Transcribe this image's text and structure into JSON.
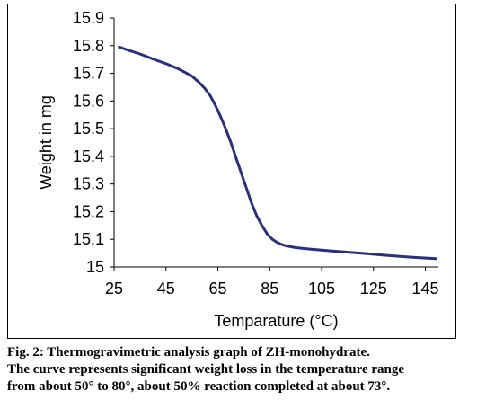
{
  "chart_data": {
    "type": "line",
    "title": "",
    "xlabel": "Temparature (°C)",
    "ylabel": "Weight in mg",
    "xlim": [
      25,
      150
    ],
    "ylim": [
      15,
      15.9
    ],
    "xticks": [
      "25",
      "45",
      "65",
      "85",
      "105",
      "125",
      "145"
    ],
    "yticks": [
      "15",
      "15.1",
      "15.2",
      "15.3",
      "15.4",
      "15.5",
      "15.6",
      "15.7",
      "15.8",
      "15.9"
    ],
    "grid": false,
    "legend": "none",
    "series": [
      {
        "color": "#2b2f7f",
        "x": [
          27,
          30,
          35,
          40,
          45,
          50,
          55,
          58,
          60,
          62,
          64,
          66,
          68,
          70,
          72,
          74,
          76,
          78,
          80,
          82,
          84,
          86,
          88,
          90,
          92,
          95,
          100,
          110,
          120,
          130,
          140,
          149
        ],
        "y": [
          15.795,
          15.785,
          15.77,
          15.752,
          15.735,
          15.715,
          15.69,
          15.665,
          15.645,
          15.62,
          15.585,
          15.545,
          15.5,
          15.45,
          15.395,
          15.34,
          15.285,
          15.23,
          15.185,
          15.15,
          15.12,
          15.1,
          15.088,
          15.08,
          15.075,
          15.07,
          15.065,
          15.057,
          15.05,
          15.042,
          15.035,
          15.03
        ]
      }
    ]
  },
  "caption": {
    "line1": "Fig. 2: Thermogravimetric analysis graph of ZH-monohydrate.",
    "line2": "The curve represents significant weight loss in the temperature range",
    "line3": "from about 50° to 80°, about 50% reaction completed at about 73°."
  }
}
